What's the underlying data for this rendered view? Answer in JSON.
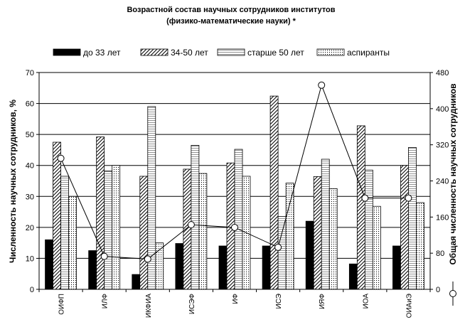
{
  "chart_data": {
    "type": "bar",
    "title": "Возрастной состав научных сотрудников институтов",
    "subtitle": "(физико-математические науки) *",
    "categories": [
      "ОИФП",
      "ИЛФ",
      "ИКФИА",
      "ИСЭФ",
      "ИФ",
      "ИСЭ",
      "ИЯФ",
      "ИОА",
      "ОИАиЭ"
    ],
    "ylabel": "Численность научных сотрудников, %",
    "y2label": "Общая численность научных сотрудников",
    "ylim": [
      0,
      70
    ],
    "yticks": [
      0,
      10,
      20,
      30,
      40,
      50,
      60,
      70
    ],
    "y2lim": [
      0,
      480
    ],
    "y2ticks": [
      0,
      80,
      160,
      240,
      320,
      400,
      480
    ],
    "grid": true,
    "legend_position": "top",
    "series": [
      {
        "name": "до 33 лет",
        "pattern": "solid-black",
        "values": [
          16,
          12.5,
          4.8,
          14.8,
          14,
          14,
          22,
          8.2,
          14
        ]
      },
      {
        "name": "34-50 лет",
        "pattern": "diagonal-hatch",
        "values": [
          47.5,
          49.2,
          36.5,
          38.8,
          40.8,
          62.4,
          36.4,
          52.8,
          40
        ]
      },
      {
        "name": "старше 50 лет",
        "pattern": "horizontal-lines",
        "values": [
          36.5,
          38.2,
          59,
          46.5,
          45.2,
          23.5,
          42,
          38.5,
          45.8
        ]
      },
      {
        "name": "аспиранты",
        "pattern": "dotted",
        "values": [
          30,
          40,
          15,
          37.4,
          36.5,
          34.3,
          32.5,
          26.8,
          28
        ]
      }
    ],
    "line_series": {
      "name": "",
      "axis": "secondary",
      "values": [
        290,
        73,
        67,
        143,
        137,
        93,
        452,
        202,
        202
      ]
    }
  }
}
